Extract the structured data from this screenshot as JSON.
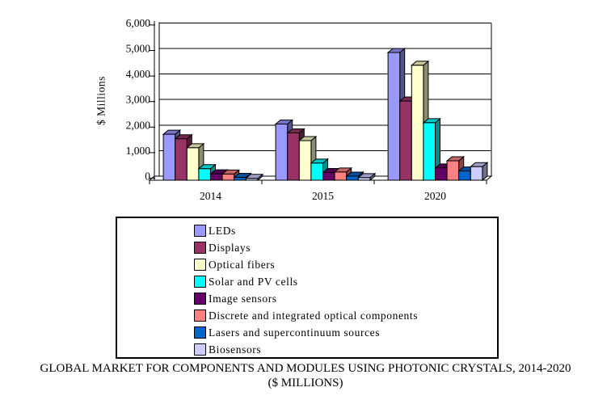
{
  "chart_data": {
    "type": "bar",
    "title": "GLOBAL MARKET FOR COMPONENTS AND MODULES USING PHOTONIC CRYSTALS, 2014-2020",
    "subtitle": "($ MILLIONS)",
    "ylabel": "$ Millions",
    "ylim": [
      0,
      6000
    ],
    "ytick_step": 1000,
    "ytick_labels": [
      "0",
      "1,000",
      "2,000",
      "3,000",
      "4,000",
      "5,000",
      "6,000"
    ],
    "categories": [
      "2014",
      "2015",
      "2020"
    ],
    "series": [
      {
        "name": "LEDs",
        "color": "#9999FF",
        "values": [
          1800,
          2200,
          5000
        ]
      },
      {
        "name": "Displays",
        "color": "#993366",
        "values": [
          1620,
          1850,
          3100
        ]
      },
      {
        "name": "Optical fibers",
        "color": "#FFFFCC",
        "values": [
          1270,
          1550,
          4500
        ]
      },
      {
        "name": "Solar and PV cells",
        "color": "#00FFFF",
        "values": [
          450,
          670,
          2250
        ]
      },
      {
        "name": "Image sensors",
        "color": "#660066",
        "values": [
          250,
          300,
          480
        ]
      },
      {
        "name": "Discrete and integrated optical components",
        "color": "#FF8080",
        "values": [
          240,
          320,
          760
        ]
      },
      {
        "name": "Lasers and supercontinuum sources",
        "color": "#0066CC",
        "values": [
          110,
          160,
          360
        ]
      },
      {
        "name": "Biosensors",
        "color": "#CCCCFF",
        "values": [
          70,
          100,
          530
        ]
      }
    ],
    "grid": true,
    "legend_position": "bottom-box",
    "effect": "3d-bars"
  }
}
